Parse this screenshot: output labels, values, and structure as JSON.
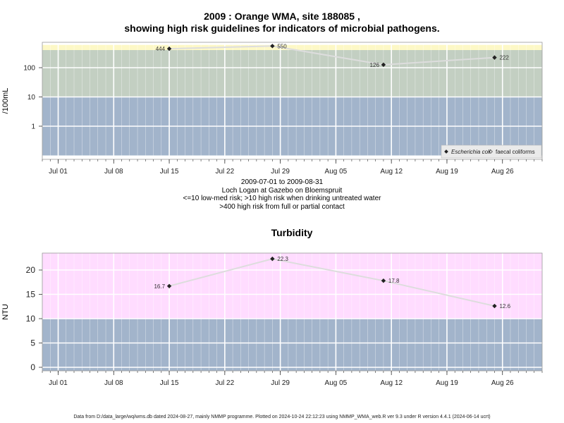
{
  "header": {
    "title_line1": "2009 : Orange WMA, site 188085 ,",
    "title_line2": "showing high risk guidelines for indicators of microbial pathogens."
  },
  "subtitle": {
    "line1": "2009-07-01 to 2009-08-31",
    "line2": "Loch Logan at Gazebo on Bloemspruit",
    "line3": "<=10 low-med risk; >10 high risk when drinking untreated water",
    "line4": ">400 high risk from full or partial contact"
  },
  "footer": {
    "text": "Data from D:/data_large/wq/wms.db dated 2024-08-27, mainly NMMP programme. Plotted on 2024-10-24 22:12:23 using NMMP_WMA_web.R ver 9.3 under R version 4.4.1 (2024-06-14 ucrt)"
  },
  "colors": {
    "low_band": "#a2b4cb",
    "mid_band": "#c3cfc2",
    "high_band": "#fdf8c6",
    "turb_high_band": "#ffdcff",
    "grid": "#ffffff",
    "line": "#dddddd",
    "marker": "#222222"
  },
  "chart_data": [
    {
      "type": "line",
      "title": "",
      "xlabel": "",
      "ylabel": "/100mL",
      "log_scale_y": true,
      "y_ticks": [
        "1",
        "10",
        "100"
      ],
      "x_ticks": [
        "Jul 01",
        "Jul 08",
        "Jul 15",
        "Jul 22",
        "Jul 29",
        "Aug 05",
        "Aug 12",
        "Aug 19",
        "Aug 26"
      ],
      "x_range": [
        "2009-06-29",
        "2009-08-31"
      ],
      "bands": [
        {
          "from": 0.1,
          "to": 10,
          "meaning": "low-med risk"
        },
        {
          "from": 10,
          "to": 400,
          "meaning": "high risk when drinking untreated water"
        },
        {
          "from": 400,
          "to": 600,
          "meaning": "high risk from full or partial contact"
        }
      ],
      "legend": {
        "position": "bottom-right",
        "entries": [
          {
            "label": "Escherichia coli",
            "marker": "filled-diamond"
          },
          {
            "label": "faecal coliforms",
            "marker": "open-diamond"
          }
        ]
      },
      "series": [
        {
          "name": "Escherichia coli",
          "x": [
            "2009-07-15",
            "2009-07-28",
            "2009-08-11",
            "2009-08-25"
          ],
          "values": [
            444,
            550,
            126,
            222
          ],
          "labels": [
            "444",
            "550",
            "126",
            "222"
          ]
        }
      ]
    },
    {
      "type": "line",
      "title": "Turbidity",
      "xlabel": "",
      "ylabel": "NTU",
      "log_scale_y": false,
      "ylim": [
        -1,
        23.5
      ],
      "y_ticks": [
        "0",
        "5",
        "10",
        "15",
        "20"
      ],
      "x_ticks": [
        "Jul 01",
        "Jul 08",
        "Jul 15",
        "Jul 22",
        "Jul 29",
        "Aug 05",
        "Aug 12",
        "Aug 19",
        "Aug 26"
      ],
      "x_range": [
        "2009-06-29",
        "2009-08-31"
      ],
      "bands": [
        {
          "from": -1,
          "to": 10
        },
        {
          "from": 10,
          "to": 23.5
        }
      ],
      "series": [
        {
          "name": "",
          "x": [
            "2009-07-15",
            "2009-07-28",
            "2009-08-11",
            "2009-08-25"
          ],
          "values": [
            16.7,
            22.3,
            17.8,
            12.6
          ],
          "labels": [
            "16.7",
            "22.3",
            "17.8",
            "12.6"
          ]
        }
      ]
    }
  ]
}
